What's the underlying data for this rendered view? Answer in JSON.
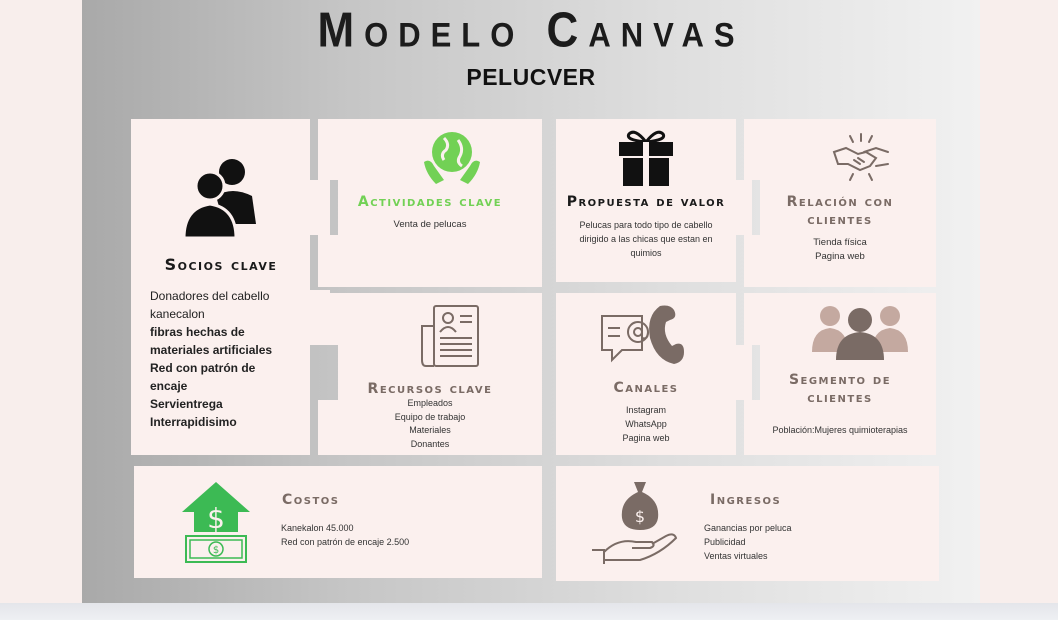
{
  "title": "Modelo Canvas",
  "subtitle": "PELUCVER",
  "colors": {
    "green": "#72d155",
    "brown": "#7a6b65",
    "card": "#fbf0ee",
    "dark": "#1a1a1a"
  },
  "socios": {
    "icon": "people-icon",
    "heading": "Socios clave",
    "items": [
      {
        "text": "Donadores del cabello",
        "bold": false
      },
      {
        "text": "kanecalon",
        "bold": false
      },
      {
        "text": "fibras hechas de",
        "bold": true
      },
      {
        "text": "materiales artificiales",
        "bold": true
      },
      {
        "text": "Red con patrón de",
        "bold": true
      },
      {
        "text": "encaje",
        "bold": false
      },
      {
        "text": "Servientrega",
        "bold": true
      },
      {
        "text": "Interrapidisimo",
        "bold": true
      }
    ]
  },
  "actividades": {
    "icon": "globe-hands-icon",
    "heading": "Actividades clave",
    "lines": [
      "Venta de pelucas"
    ]
  },
  "propuesta": {
    "icon": "gift-icon",
    "heading": "Propuesta de valor",
    "lines": [
      "Pelucas para todo tipo de cabello",
      "dirigido a las chicas que estan en",
      "quimios"
    ]
  },
  "relacion": {
    "icon": "handshake-icon",
    "heading_lines": [
      "Relación con",
      "clientes"
    ],
    "lines": [
      "Tienda física",
      "Pagina web"
    ]
  },
  "recursos": {
    "icon": "document-icon",
    "heading": "Recursos clave",
    "lines": [
      "Empleados",
      "Equipo de trabajo",
      "Materiales",
      "Donantes"
    ]
  },
  "canales": {
    "icon": "chat-phone-icon",
    "heading": "Canales",
    "lines": [
      "Instagram",
      "WhatsApp",
      "Pagina web"
    ]
  },
  "segmento": {
    "icon": "group-icon",
    "heading_lines": [
      "Segmento de",
      "clientes"
    ],
    "lines": [
      "Población:Mujeres quimioterapias"
    ]
  },
  "costos": {
    "icon": "dollar-house-icon",
    "heading": "Costos",
    "lines": [
      "Kanekalon 45.000",
      "Red con patrón de encaje 2.500"
    ]
  },
  "ingresos": {
    "icon": "money-bag-hand-icon",
    "heading": "Ingresos",
    "lines": [
      "Ganancias por peluca",
      "Publicidad",
      "Ventas virtuales"
    ]
  }
}
